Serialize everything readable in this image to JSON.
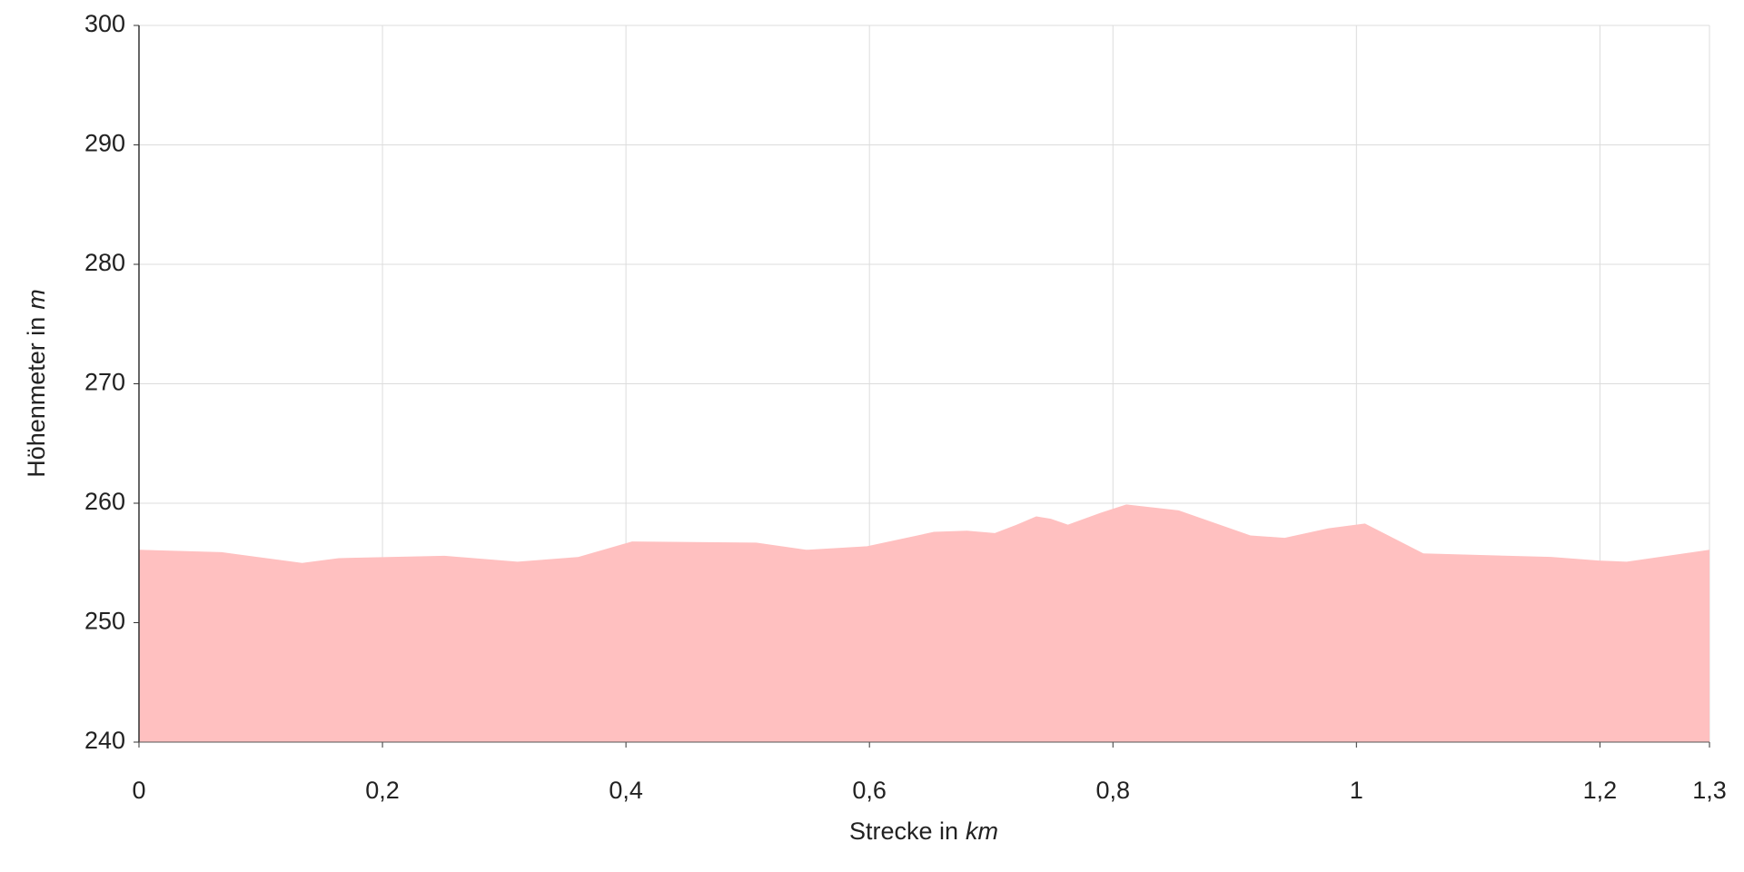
{
  "chart_data": {
    "type": "area",
    "xlabel": "Strecke in",
    "xlabel_unit": "km",
    "ylabel": "Höhenmeter in",
    "ylabel_unit": "m",
    "x": [
      0,
      0.068,
      0.134,
      0.164,
      0.251,
      0.311,
      0.361,
      0.405,
      0.507,
      0.548,
      0.598,
      0.653,
      0.68,
      0.703,
      0.721,
      0.737,
      0.749,
      0.763,
      0.79,
      0.811,
      0.854,
      0.913,
      0.941,
      0.977,
      1.007,
      1.055,
      1.16,
      1.199,
      1.222,
      1.29
    ],
    "series": [
      {
        "color": "#ffc0c0",
        "values": [
          256.1,
          255.9,
          255.0,
          255.4,
          255.6,
          255.1,
          255.5,
          256.8,
          256.7,
          256.1,
          256.4,
          257.6,
          257.7,
          257.5,
          258.2,
          258.9,
          258.7,
          258.2,
          259.2,
          259.9,
          259.4,
          257.3,
          257.1,
          257.9,
          258.3,
          255.8,
          255.5,
          255.2,
          255.1,
          256.1
        ]
      }
    ],
    "xlim": [
      0,
      1.29
    ],
    "xticks": [
      0,
      {
        "value": 0.2,
        "label": "0,2"
      },
      {
        "value": 0.4,
        "label": "0,4"
      },
      {
        "value": 0.6,
        "label": "0,6"
      },
      {
        "value": 0.8,
        "label": "0,8"
      },
      1,
      {
        "value": 1.2,
        "label": "1,2"
      },
      {
        "value": 1.29,
        "label": "1,3"
      }
    ],
    "ylim": [
      240,
      300
    ],
    "yticks": [
      240,
      250,
      260,
      270,
      280,
      290,
      300
    ],
    "grid": true
  }
}
